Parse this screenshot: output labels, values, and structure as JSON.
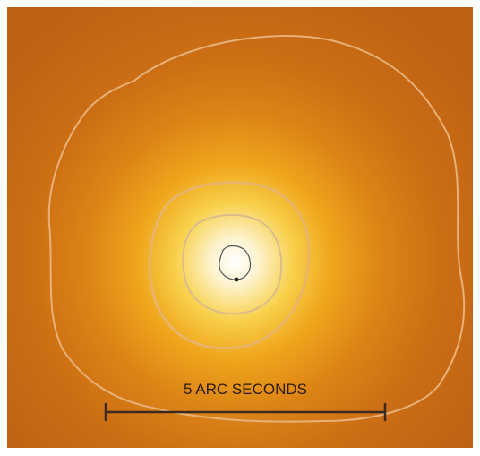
{
  "scale_bar": {
    "label": "5 ARC SECONDS"
  }
}
